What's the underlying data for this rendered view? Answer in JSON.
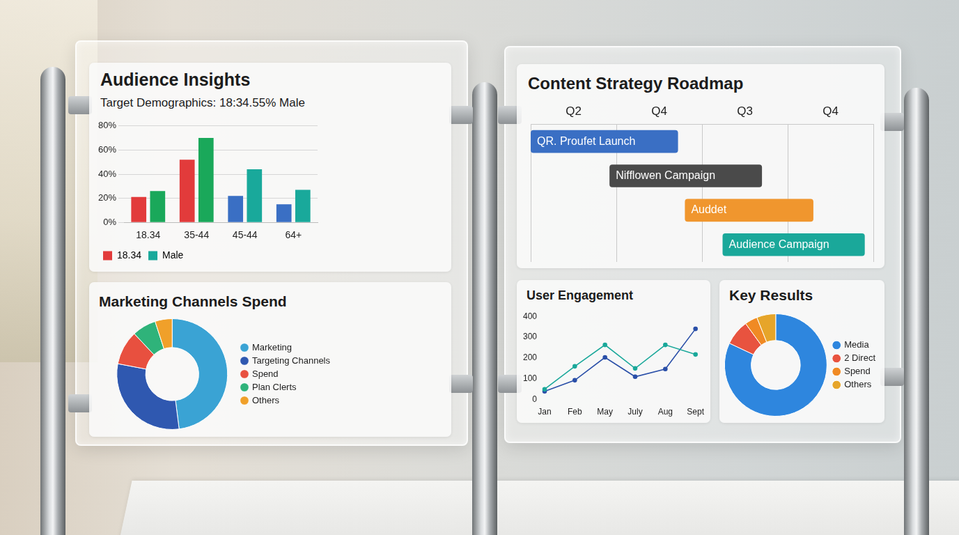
{
  "chart_data": [
    {
      "type": "bar",
      "title": "Audience Insights",
      "subtitle": "Target Demographics: 18:34.55% Male",
      "categories": [
        "18.34",
        "35-44",
        "45-44",
        "64+"
      ],
      "series": [
        {
          "name": "18.34",
          "color": "#e23b3b",
          "colors": [
            "#e23b3b",
            "#e23b3b",
            "#3a6fc4",
            "#3a6fc4"
          ],
          "values": [
            21,
            52,
            22,
            15
          ]
        },
        {
          "name": "Male",
          "color": "#19a99b",
          "colors": [
            "#1aa85a",
            "#1aa85a",
            "#19a99b",
            "#19a99b"
          ],
          "values": [
            26,
            70,
            44,
            27
          ]
        }
      ],
      "ylim": [
        0,
        80
      ],
      "yticks": [
        {
          "value": 0,
          "label": "0%"
        },
        {
          "value": 20,
          "label": "20%"
        },
        {
          "value": 40,
          "label": "40%"
        },
        {
          "value": 60,
          "label": "60%"
        },
        {
          "value": 80,
          "label": "80%"
        }
      ],
      "grid": true,
      "legend": "bottom-left"
    },
    {
      "type": "doughnut",
      "title": "Marketing Channels Spend",
      "categories": [
        "Marketing",
        "Targeting Channels",
        "Spend",
        "Plan Clerts",
        "Others"
      ],
      "values": [
        48,
        30,
        10,
        7,
        5
      ],
      "colors": [
        "#3aa3d4",
        "#2f58b0",
        "#e8503f",
        "#2fb37a",
        "#f0a02a"
      ],
      "legend": "right"
    },
    {
      "type": "gantt",
      "title": "Content Strategy Roadmap",
      "categories": [
        "QR. Proufet Launch",
        "Nifflowen Campaign",
        "Auddet",
        "Audience Campaign"
      ],
      "values": [
        [
          0,
          1.72
        ],
        [
          0.92,
          2.7
        ],
        [
          1.8,
          3.3
        ],
        [
          2.24,
          3.9
        ]
      ],
      "colors": [
        "#3a6fc4",
        "#4a4a4a",
        "#f0962e",
        "#1aa89a"
      ],
      "xlim": [
        0,
        4
      ],
      "xticks": [
        {
          "value": 0.5,
          "label": "Q2"
        },
        {
          "value": 1.5,
          "label": "Q4"
        },
        {
          "value": 2.5,
          "label": "Q3"
        },
        {
          "value": 3.5,
          "label": "Q4"
        }
      ],
      "grid": true,
      "tick_labels": "x"
    },
    {
      "type": "line",
      "title": "User Engagement",
      "categories": [
        "Jan",
        "Feb",
        "May",
        "July",
        "Aug",
        "Sept"
      ],
      "series": [
        {
          "color": "#1aa89a",
          "values": [
            50,
            160,
            263,
            150,
            263,
            217
          ]
        },
        {
          "color": "#2a4fa8",
          "values": [
            40,
            93,
            203,
            110,
            147,
            340
          ]
        }
      ],
      "ylim": [
        0,
        400
      ],
      "yticks": [
        0,
        100,
        200,
        300,
        400
      ],
      "grid": false,
      "marker": "circle"
    },
    {
      "type": "doughnut",
      "title": "Key Results",
      "categories": [
        "Media",
        "2 Direct",
        "Spend",
        "Others"
      ],
      "values": [
        82,
        8,
        4,
        6
      ],
      "colors": [
        "#2e86de",
        "#e8533f",
        "#f08a24",
        "#e6a52a"
      ],
      "legend": "right"
    }
  ]
}
